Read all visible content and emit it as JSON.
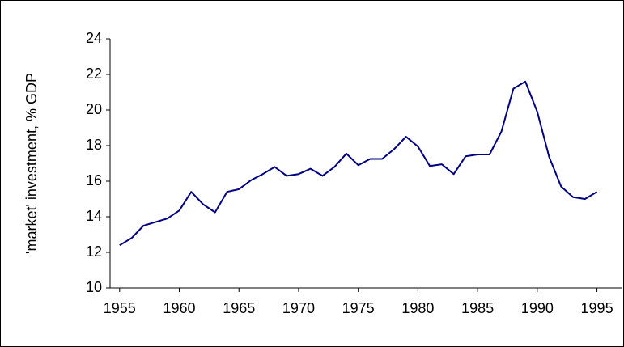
{
  "chart_data": {
    "type": "line",
    "ylabel": "'market' investment, % GDP",
    "x": [
      1955,
      1956,
      1957,
      1958,
      1959,
      1960,
      1961,
      1962,
      1963,
      1964,
      1965,
      1966,
      1967,
      1968,
      1969,
      1970,
      1971,
      1972,
      1973,
      1974,
      1975,
      1976,
      1977,
      1978,
      1979,
      1980,
      1981,
      1982,
      1983,
      1984,
      1985,
      1986,
      1987,
      1988,
      1989,
      1990,
      1991,
      1992,
      1993,
      1994,
      1995
    ],
    "series": [
      {
        "color": "#000080",
        "values": [
          12.4,
          12.8,
          13.5,
          13.7,
          13.9,
          14.35,
          15.4,
          14.7,
          14.25,
          15.4,
          15.55,
          16.05,
          16.4,
          16.8,
          16.3,
          16.4,
          16.7,
          16.3,
          16.8,
          17.55,
          16.9,
          17.25,
          17.25,
          17.8,
          18.5,
          17.95,
          16.85,
          16.95,
          16.4,
          17.4,
          17.5,
          17.5,
          18.8,
          21.2,
          21.6,
          19.9,
          17.35,
          15.7,
          15.1,
          15.0,
          15.4
        ]
      }
    ],
    "xlim": [
      1954.2,
      1997.2
    ],
    "xticks": [
      1955,
      1960,
      1965,
      1970,
      1975,
      1980,
      1985,
      1990,
      1995
    ],
    "ylim": [
      10,
      24
    ],
    "yticks": [
      10,
      12,
      14,
      16,
      18,
      20,
      22,
      24
    ],
    "grid": false
  }
}
